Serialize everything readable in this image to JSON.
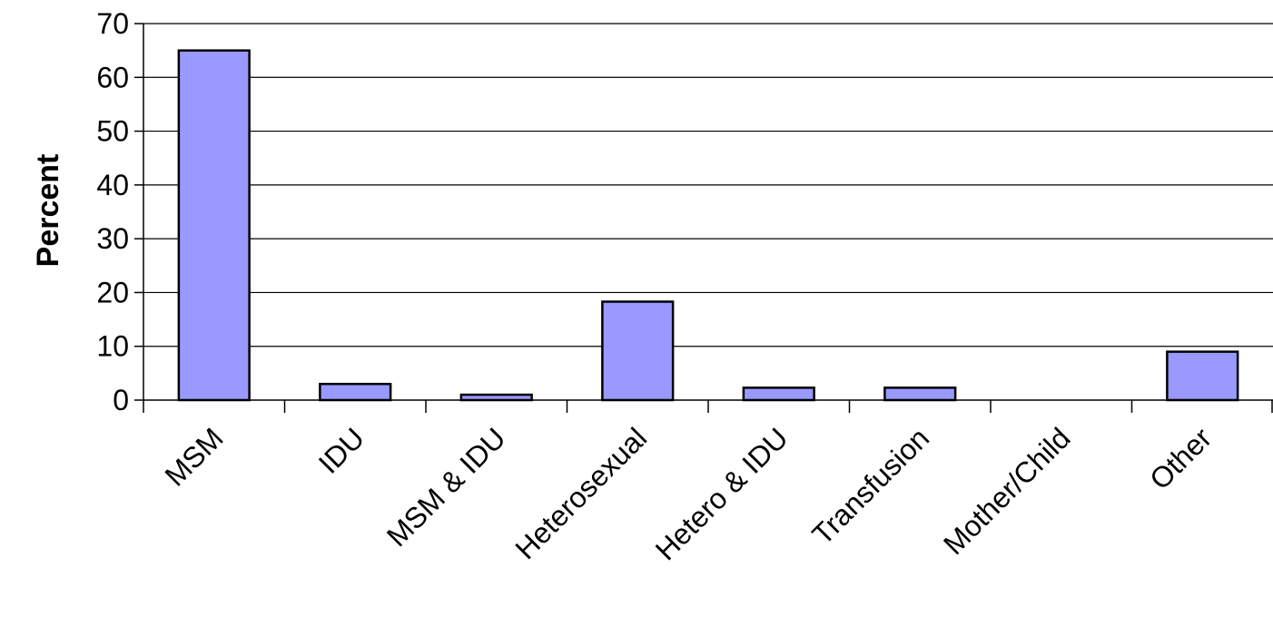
{
  "chart_data": {
    "type": "bar",
    "categories": [
      "MSM",
      "IDU",
      "MSM & IDU",
      "Heterosexual",
      "Hetero & IDU",
      "Transfusion",
      "Mother/Child",
      "Other"
    ],
    "values": [
      65,
      3,
      1,
      18.3,
      2.3,
      2.3,
      0,
      9
    ],
    "ylabel": "Percent",
    "xlabel": "",
    "ylim": [
      0,
      70
    ],
    "yticks": [
      0,
      10,
      20,
      30,
      40,
      50,
      60,
      70
    ],
    "grid": true,
    "legend": "none",
    "bar_color": "#9999ff"
  }
}
